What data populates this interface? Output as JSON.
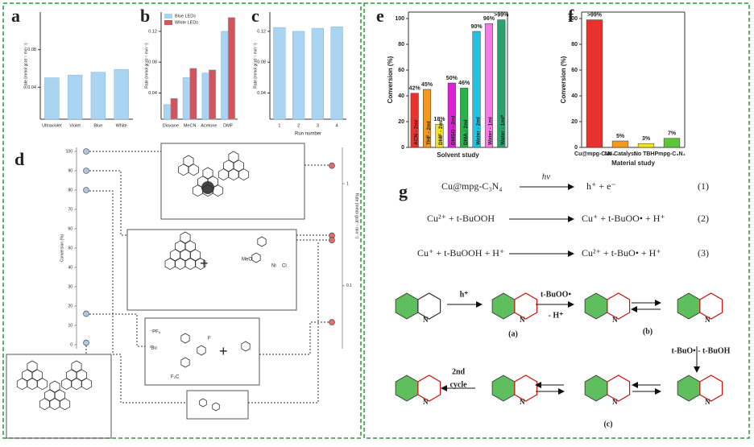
{
  "chart_data": [
    {
      "type": "bar",
      "panel": "a",
      "y_label": "Rate (mmol gcat⁻¹ min⁻¹)",
      "categories": [
        "Ultraviolet",
        "Violet",
        "Blue",
        "White"
      ],
      "values": [
        0.05,
        0.053,
        0.056,
        0.059
      ],
      "color": "#a9d4f2",
      "ylim": [
        0.006,
        0.12
      ],
      "yticks": [
        0.04,
        0.08
      ]
    },
    {
      "type": "bar",
      "panel": "b",
      "y_label": "Rate (mmol gcat⁻¹ min⁻¹)",
      "categories": [
        "Dioxane",
        "MeCN",
        "Acetone",
        "DMF"
      ],
      "series": [
        {
          "name": "Blue LEDs",
          "color": "#a9d4f2",
          "values": [
            0.025,
            0.06,
            0.066,
            0.12
          ]
        },
        {
          "name": "White LEDs",
          "color": "#d2545c",
          "values": [
            0.033,
            0.072,
            0.07,
            0.138
          ]
        }
      ],
      "legend": "upper-left",
      "ylim": [
        0.006,
        0.145
      ],
      "yticks": [
        0.04,
        0.08,
        0.12
      ]
    },
    {
      "type": "bar",
      "panel": "c",
      "y_label": "Rate (mmol gcat⁻¹ min⁻¹)",
      "x_label": "Run number",
      "categories": [
        "1",
        "2",
        "3",
        "4"
      ],
      "values": [
        0.125,
        0.12,
        0.124,
        0.126
      ],
      "color": "#a9d4f2",
      "ylim": [
        0.006,
        0.145
      ],
      "yticks": [
        0.04,
        0.08,
        0.12
      ]
    },
    {
      "type": "bar",
      "panel": "e",
      "y_label": "Conversion (%)",
      "x_label": "Solvent study",
      "categories": [
        "ACN - 2ml",
        "THF - 2ml",
        "DMF - 2ml",
        "DMSO - 2ml",
        "DMA - 2ml",
        "Water - 2ml",
        "Water - 1ml",
        "Water - 1ml*"
      ],
      "values": [
        42,
        45,
        18,
        50,
        46,
        90,
        96,
        99
      ],
      "value_labels": [
        "42%",
        "45%",
        "18%",
        "50%",
        "46%",
        "90%",
        "96%",
        ">99%"
      ],
      "colors": [
        "#e8322d",
        "#f39a1e",
        "#f5e21a",
        "#e020d8",
        "#27b34a",
        "#1ec4e6",
        "#f47ae6",
        "#2aa36a"
      ],
      "ylim": [
        0,
        105
      ],
      "yticks": [
        0,
        20,
        40,
        60,
        80,
        100
      ]
    },
    {
      "type": "bar",
      "panel": "f",
      "y_label": "Conversion (%)",
      "x_label": "Material study",
      "categories": [
        "Cu@mpg-C₃N₄",
        "No Catalyst",
        "No TBHP",
        "mpg-C₃N₄"
      ],
      "values": [
        99,
        5,
        3,
        7
      ],
      "value_labels": [
        ">99%",
        "5%",
        "3%",
        "7%"
      ],
      "colors": [
        "#e8322d",
        "#f39a1e",
        "#f5e21a",
        "#5ec43a"
      ],
      "ylim": [
        0,
        105
      ],
      "yticks": [
        0,
        20,
        40,
        60,
        80,
        100
      ]
    },
    {
      "type": "dot",
      "panel": "d",
      "y_label": "Conversion (%)",
      "y2_label": "Rate (mmol gcat⁻¹ min⁻¹)",
      "series": [
        {
          "color": "#a9c8ea",
          "values": [
            100,
            90,
            80,
            16,
            1
          ]
        },
        {
          "color": "#e07070",
          "axis": "y2",
          "values": [
            1.5,
            0.31,
            0.28,
            0.044
          ]
        }
      ],
      "ylim": [
        0,
        100
      ],
      "yticks": [
        0,
        10,
        20,
        30,
        40,
        50,
        60,
        70,
        80,
        90,
        100
      ],
      "y2lim": [
        0.0265,
        2.07
      ],
      "y2ticks": [
        0.1,
        1
      ],
      "y2log": true
    }
  ],
  "panel_d_texts": {
    "plus1": "+",
    "plus2": "+",
    "meo": "MeO",
    "cl": "Cl",
    "ni": "Ni",
    "pf6": "⁻PF₆",
    "tbu": "ᵗBu",
    "cf3": "F₃C",
    "f": "F"
  },
  "panel_g": {
    "label": "g",
    "equations": [
      {
        "left": "Cu@mpg-C₃N₄",
        "arrow": "hν",
        "right": "h⁺ + e⁻",
        "num": "(1)"
      },
      {
        "left": "Cu²⁺ + t-BuOOH",
        "right": "Cu⁺ + t-BuOO• + H⁺",
        "num": "(2)"
      },
      {
        "left": "Cu⁺ + t-BuOOH + H⁺",
        "right": "Cu²⁺ + t-BuO• + H⁺",
        "num": "(3)"
      }
    ],
    "scheme": {
      "step1": "h⁺",
      "step2a": "t-BuOO•",
      "step2b": "- H⁺",
      "step3": "t-BuO• - t-BuOH",
      "cycle_a": "2nd",
      "cycle_b": "cycle",
      "a": "(a)",
      "b": "(b)",
      "c": "(c)"
    }
  }
}
